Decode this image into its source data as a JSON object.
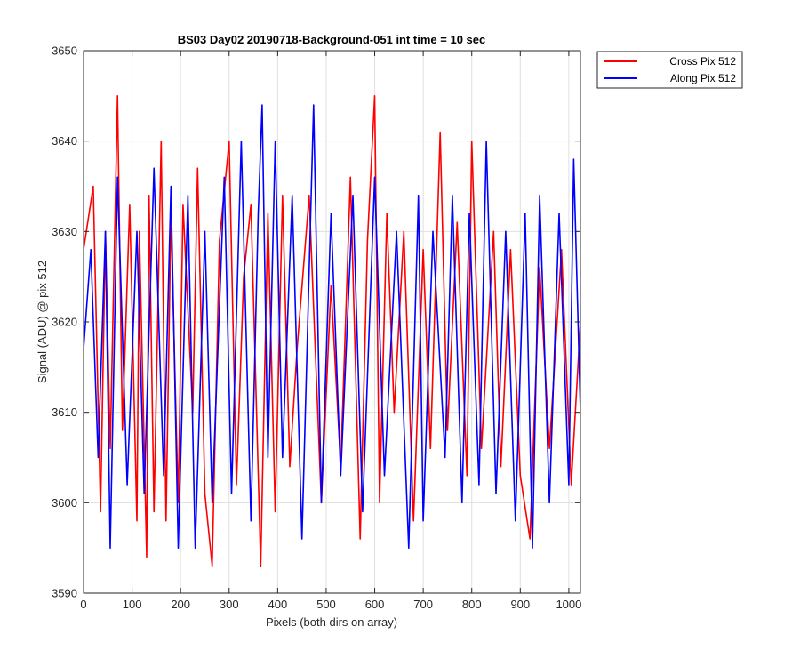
{
  "chart_data": {
    "type": "line",
    "title": "BS03 Day02 20190718-Background-051 int time = 10 sec",
    "xlabel": "Pixels (both dirs on array)",
    "ylabel": "Signal (ADU) @ pix 512",
    "xlim": [
      0,
      1024
    ],
    "ylim": [
      3590,
      3650
    ],
    "xticks": [
      0,
      100,
      200,
      300,
      400,
      500,
      600,
      700,
      800,
      900,
      1000
    ],
    "yticks": [
      3590,
      3600,
      3610,
      3620,
      3630,
      3640,
      3650
    ],
    "grid": true,
    "legend_placement": "outside-top-right",
    "series": [
      {
        "name": "Cross Pix 512",
        "color": "#ff0000",
        "x": [
          0,
          20,
          35,
          45,
          55,
          65,
          70,
          80,
          95,
          110,
          115,
          130,
          135,
          145,
          160,
          170,
          180,
          195,
          205,
          225,
          235,
          250,
          265,
          280,
          300,
          315,
          330,
          345,
          365,
          380,
          395,
          410,
          425,
          440,
          465,
          490,
          510,
          530,
          550,
          570,
          585,
          600,
          610,
          625,
          640,
          660,
          680,
          700,
          715,
          735,
          750,
          770,
          790,
          800,
          820,
          845,
          860,
          880,
          900,
          920,
          940,
          960,
          985,
          1005,
          1024
        ],
        "y": [
          3628,
          3635,
          3599,
          3630,
          3606,
          3632,
          3645,
          3608,
          3633,
          3598,
          3630,
          3594,
          3634,
          3599,
          3640,
          3598,
          3632,
          3600,
          3633,
          3610,
          3637,
          3601,
          3593,
          3629,
          3640,
          3602,
          3625,
          3633,
          3593,
          3632,
          3599,
          3634,
          3604,
          3617,
          3634,
          3600,
          3624,
          3604,
          3636,
          3596,
          3629,
          3645,
          3600,
          3632,
          3610,
          3630,
          3598,
          3628,
          3606,
          3641,
          3608,
          3631,
          3603,
          3640,
          3606,
          3630,
          3604,
          3628,
          3603,
          3596,
          3626,
          3606,
          3628,
          3602,
          3620
        ]
      },
      {
        "name": "Along Pix 512",
        "color": "#0000ff",
        "x": [
          0,
          15,
          30,
          45,
          55,
          70,
          90,
          110,
          125,
          145,
          165,
          180,
          195,
          215,
          230,
          250,
          265,
          290,
          305,
          325,
          345,
          360,
          368,
          380,
          395,
          410,
          430,
          450,
          474,
          490,
          510,
          530,
          555,
          575,
          600,
          620,
          645,
          670,
          690,
          700,
          720,
          745,
          760,
          780,
          795,
          815,
          830,
          850,
          870,
          890,
          910,
          925,
          940,
          960,
          980,
          1000,
          1010,
          1024
        ],
        "y": [
          3617,
          3628,
          3605,
          3630,
          3595,
          3636,
          3602,
          3630,
          3601,
          3637,
          3603,
          3635,
          3595,
          3634,
          3595,
          3630,
          3600,
          3636,
          3601,
          3640,
          3598,
          3632,
          3644,
          3605,
          3640,
          3605,
          3634,
          3596,
          3644,
          3600,
          3632,
          3603,
          3634,
          3599,
          3636,
          3603,
          3630,
          3595,
          3634,
          3598,
          3630,
          3605,
          3634,
          3600,
          3632,
          3602,
          3640,
          3601,
          3630,
          3598,
          3632,
          3595,
          3634,
          3600,
          3632,
          3602,
          3638,
          3610
        ]
      }
    ]
  }
}
